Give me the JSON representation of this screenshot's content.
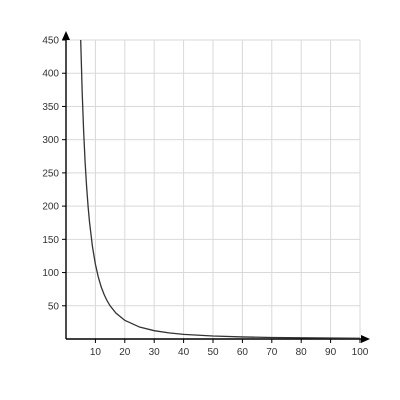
{
  "chart_data": {
    "type": "line",
    "title": "",
    "xlabel": "",
    "ylabel": "",
    "xlim": [
      0,
      100
    ],
    "ylim": [
      0,
      450
    ],
    "x_ticks": [
      10,
      20,
      30,
      40,
      50,
      60,
      70,
      80,
      90,
      100
    ],
    "y_ticks": [
      50,
      100,
      150,
      200,
      250,
      300,
      350,
      400,
      450
    ],
    "grid": true,
    "series": [
      {
        "x": [
          5,
          5.5,
          6,
          6.5,
          7,
          7.5,
          8,
          9,
          10,
          11,
          12,
          13,
          14,
          15,
          17,
          20,
          25,
          30,
          35,
          40,
          50,
          60,
          70,
          80,
          90,
          100
        ],
        "y": [
          450,
          372,
          312.5,
          266,
          230,
          200,
          176,
          139,
          112.5,
          93,
          78,
          66.6,
          57.4,
          50,
          38.9,
          28.1,
          18,
          12.5,
          9.2,
          7,
          4.5,
          3.1,
          2.3,
          1.8,
          1.4,
          1.1
        ],
        "color": "#333333"
      }
    ]
  }
}
